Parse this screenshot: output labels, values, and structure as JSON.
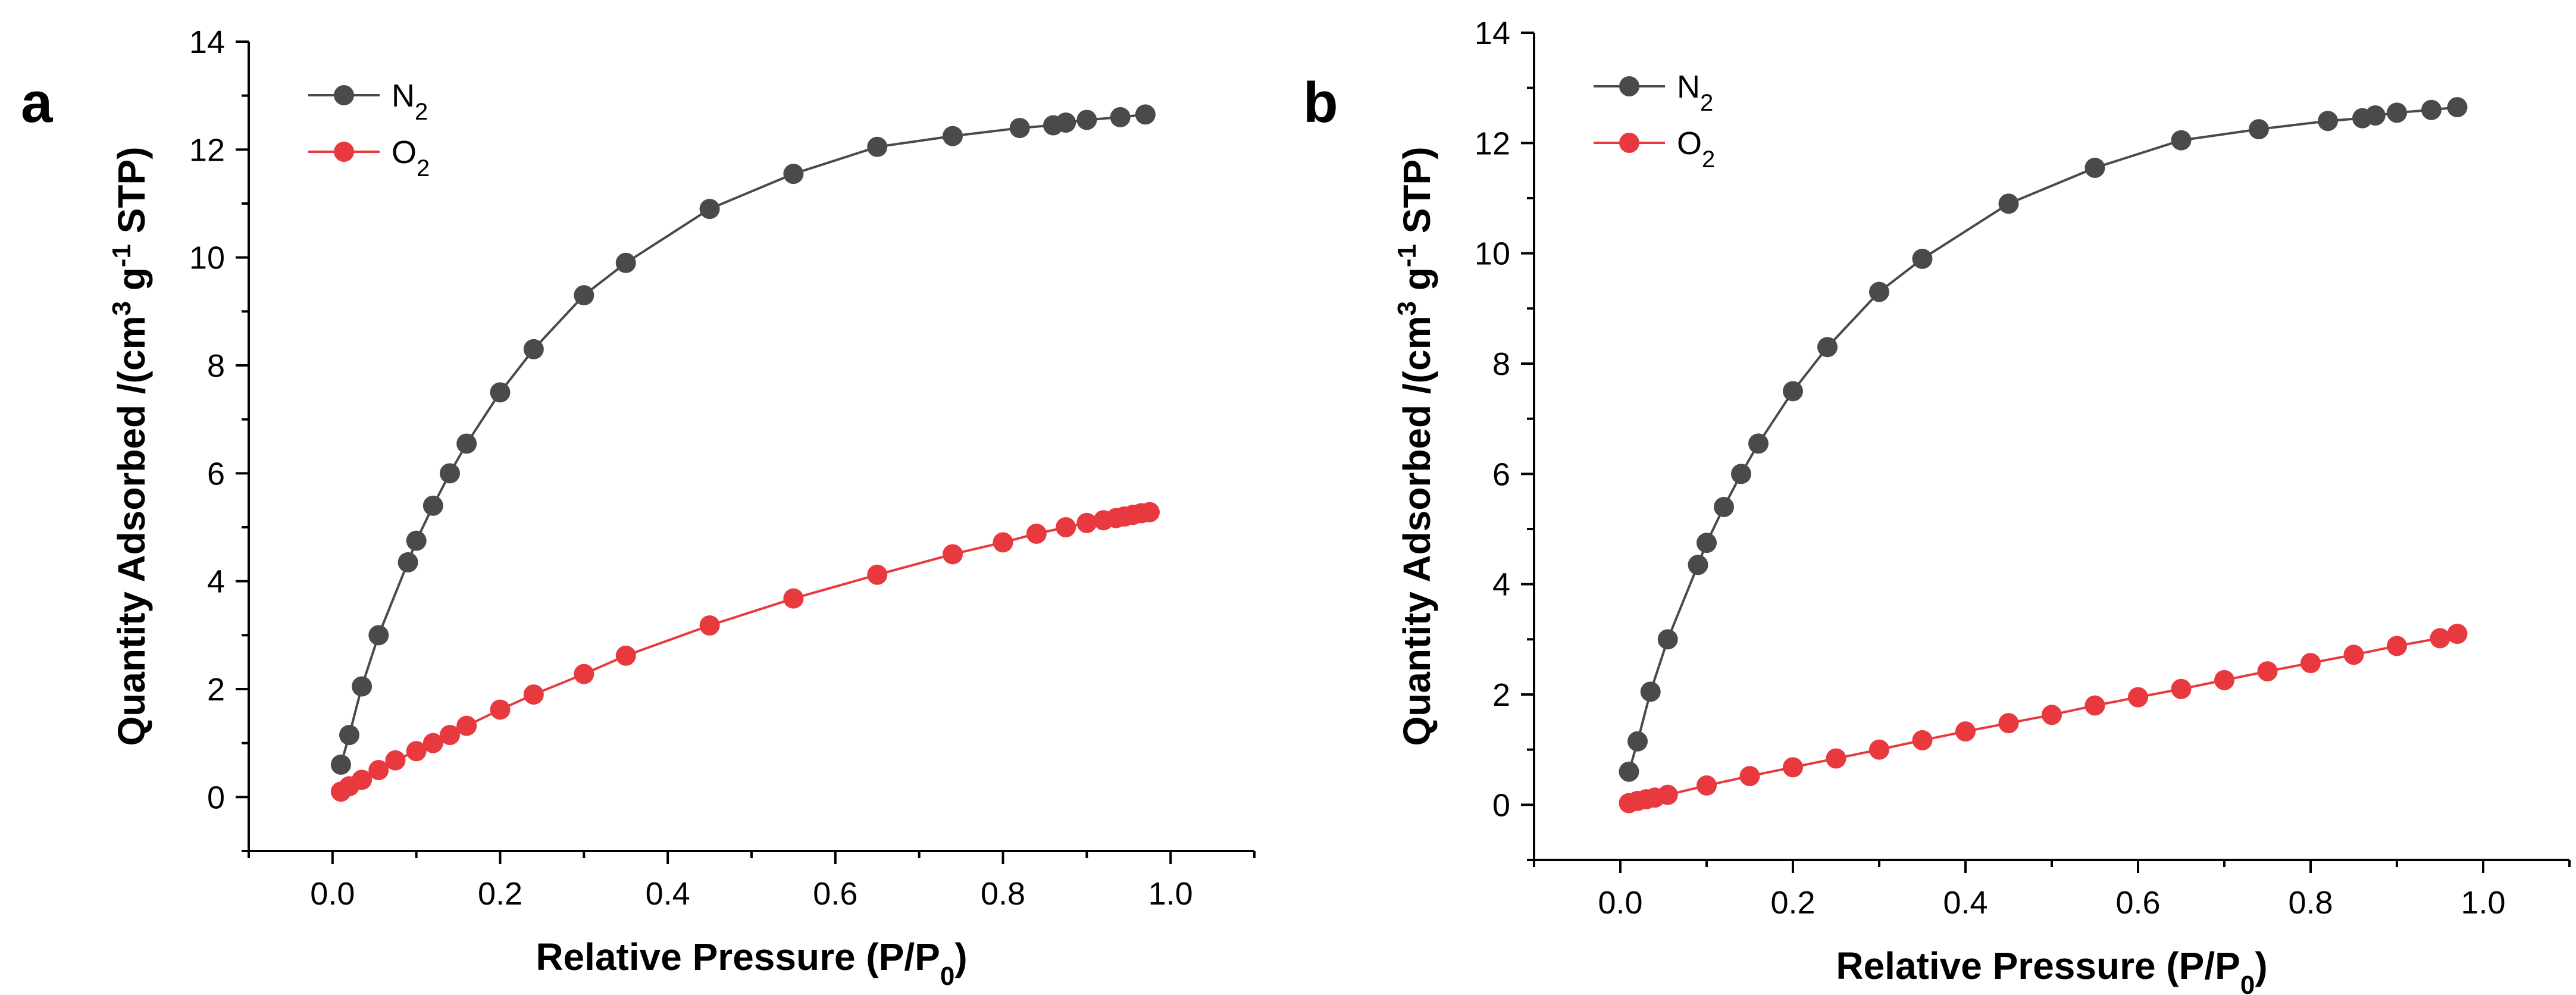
{
  "chart_data": [
    {
      "panel": "a",
      "type": "line",
      "xlabel": "Relative Pressure (P/P",
      "xlabel_sub": "0",
      "xlabel_tail": ")",
      "ylabel": "Quantity Adsorbed /(cm",
      "ylabel_sup1": "3",
      "ylabel_mid": " g",
      "ylabel_sup2": "-1",
      "ylabel_tail": " STP)",
      "xlim": [
        -0.1,
        1.1
      ],
      "ylim": [
        -1,
        14
      ],
      "xticks": [
        "0.0",
        "0.2",
        "0.4",
        "0.6",
        "0.8",
        "1.0"
      ],
      "xtick_values": [
        0,
        0.2,
        0.4,
        0.6,
        0.8,
        1.0
      ],
      "yticks": [
        "0",
        "2",
        "4",
        "6",
        "8",
        "10",
        "12",
        "14"
      ],
      "ytick_values": [
        0,
        2,
        4,
        6,
        8,
        10,
        12,
        14
      ],
      "legend_position": "top-left",
      "series": [
        {
          "name": "N",
          "name_sub": "2",
          "color": "#4a4a4a",
          "x": [
            0.01,
            0.02,
            0.035,
            0.055,
            0.09,
            0.1,
            0.12,
            0.14,
            0.16,
            0.2,
            0.24,
            0.3,
            0.35,
            0.45,
            0.55,
            0.65,
            0.74,
            0.82,
            0.86,
            0.875,
            0.9,
            0.94,
            0.97
          ],
          "values": [
            0.6,
            1.15,
            2.05,
            3.0,
            4.35,
            4.75,
            5.4,
            6.0,
            6.55,
            7.5,
            8.3,
            9.3,
            9.9,
            10.9,
            11.55,
            12.05,
            12.25,
            12.4,
            12.45,
            12.5,
            12.55,
            12.6,
            12.65
          ]
        },
        {
          "name": "O",
          "name_sub": "2",
          "color": "#e8393f",
          "x": [
            0.01,
            0.02,
            0.035,
            0.055,
            0.075,
            0.1,
            0.12,
            0.14,
            0.16,
            0.2,
            0.24,
            0.3,
            0.35,
            0.45,
            0.55,
            0.65,
            0.74,
            0.8,
            0.84,
            0.875,
            0.9,
            0.92,
            0.935,
            0.945,
            0.955,
            0.965,
            0.975
          ],
          "values": [
            0.1,
            0.2,
            0.32,
            0.5,
            0.68,
            0.85,
            1.0,
            1.15,
            1.32,
            1.62,
            1.9,
            2.28,
            2.62,
            3.18,
            3.68,
            4.12,
            4.5,
            4.72,
            4.88,
            5.0,
            5.08,
            5.13,
            5.17,
            5.2,
            5.23,
            5.26,
            5.28
          ]
        }
      ]
    },
    {
      "panel": "b",
      "type": "line",
      "xlabel": "Relative Pressure (P/P",
      "xlabel_sub": "0",
      "xlabel_tail": ")",
      "ylabel": "Quantity Adsorbed /(cm",
      "ylabel_sup1": "3",
      "ylabel_mid": " g",
      "ylabel_sup2": "-1",
      "ylabel_tail": " STP)",
      "xlim": [
        -0.1,
        1.1
      ],
      "ylim": [
        -1,
        14
      ],
      "xticks": [
        "0.0",
        "0.2",
        "0.4",
        "0.6",
        "0.8",
        "1.0"
      ],
      "xtick_values": [
        0,
        0.2,
        0.4,
        0.6,
        0.8,
        1.0
      ],
      "yticks": [
        "0",
        "2",
        "4",
        "6",
        "8",
        "10",
        "12",
        "14"
      ],
      "ytick_values": [
        0,
        2,
        4,
        6,
        8,
        10,
        12,
        14
      ],
      "legend_position": "top-left",
      "series": [
        {
          "name": "N",
          "name_sub": "2",
          "color": "#4a4a4a",
          "x": [
            0.01,
            0.02,
            0.035,
            0.055,
            0.09,
            0.1,
            0.12,
            0.14,
            0.16,
            0.2,
            0.24,
            0.3,
            0.35,
            0.45,
            0.55,
            0.65,
            0.74,
            0.82,
            0.86,
            0.875,
            0.9,
            0.94,
            0.97
          ],
          "values": [
            0.6,
            1.15,
            2.05,
            3.0,
            4.35,
            4.75,
            5.4,
            6.0,
            6.55,
            7.5,
            8.3,
            9.3,
            9.9,
            10.9,
            11.55,
            12.05,
            12.25,
            12.4,
            12.45,
            12.5,
            12.55,
            12.6,
            12.65
          ]
        },
        {
          "name": "O",
          "name_sub": "2",
          "color": "#e8393f",
          "x": [
            0.01,
            0.02,
            0.03,
            0.04,
            0.055,
            0.1,
            0.15,
            0.2,
            0.25,
            0.3,
            0.35,
            0.4,
            0.45,
            0.5,
            0.55,
            0.6,
            0.65,
            0.7,
            0.75,
            0.8,
            0.85,
            0.9,
            0.95,
            0.97
          ],
          "values": [
            0.03,
            0.07,
            0.1,
            0.13,
            0.18,
            0.35,
            0.52,
            0.68,
            0.84,
            1.0,
            1.17,
            1.33,
            1.48,
            1.63,
            1.8,
            1.95,
            2.1,
            2.26,
            2.42,
            2.57,
            2.72,
            2.88,
            3.02,
            3.1
          ]
        }
      ]
    }
  ]
}
